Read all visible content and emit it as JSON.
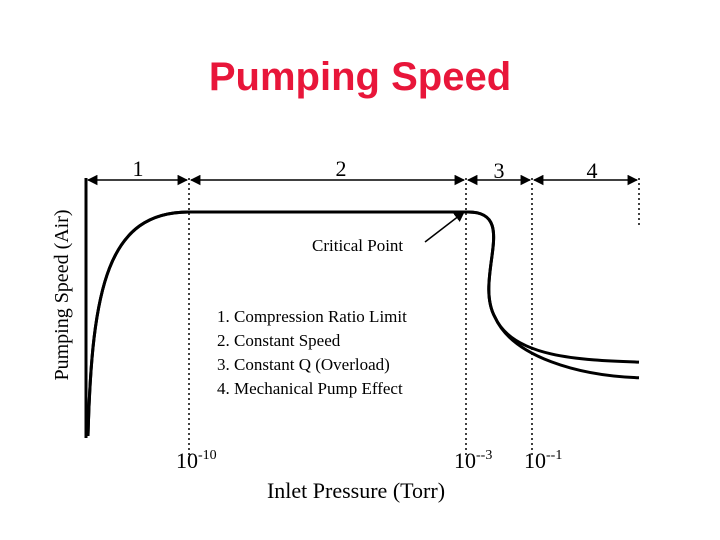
{
  "chart_data": {
    "type": "line",
    "title": "Pumping Speed",
    "xlabel": "Inlet Pressure (Torr)",
    "ylabel": "Pumping Speed (Air)",
    "zones": [
      "1",
      "2",
      "3",
      "4"
    ],
    "ticks": [
      {
        "base": "10",
        "exp": "-10"
      },
      {
        "base": "10",
        "exp": "--3"
      },
      {
        "base": "10",
        "exp": "--1"
      }
    ],
    "annotation": "Critical Point",
    "legend": [
      "1. Compression Ratio Limit",
      "2.  Constant Speed",
      "3.  Constant Q (Overload)",
      "4.  Mechanical Pump Effect"
    ],
    "series": [
      {
        "name": "upper branch",
        "x": [
          -12.0,
          -10.0,
          -3.0,
          -2.0,
          -0.4
        ],
        "y": [
          0.0,
          1.0,
          1.0,
          0.53,
          0.33
        ]
      },
      {
        "name": "lower branch",
        "x": [
          -12.0,
          -10.0,
          -3.0,
          -2.0,
          -0.4
        ],
        "y": [
          0.0,
          1.0,
          1.0,
          0.53,
          0.26
        ]
      }
    ]
  },
  "colors": {
    "title": "#e8163a",
    "line": "#000000"
  }
}
